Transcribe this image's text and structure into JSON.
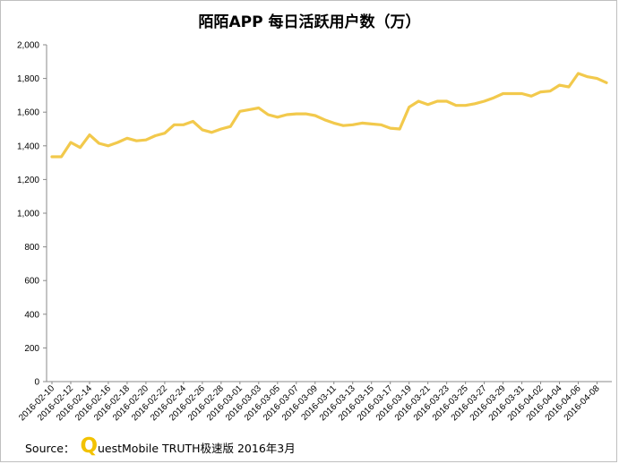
{
  "chart_data": {
    "type": "line",
    "title": "陌陌APP 每日活跃用户数（万）",
    "ylim": [
      0,
      2000
    ],
    "yticks": [
      "0",
      "200",
      "400",
      "600",
      "800",
      "1,000",
      "1,200",
      "1,400",
      "1,600",
      "1,800",
      "2,000"
    ],
    "ytick_values": [
      0,
      200,
      400,
      600,
      800,
      1000,
      1200,
      1400,
      1600,
      1800,
      2000
    ],
    "xtick_labels": [
      "2016-02-10",
      "2016-02-12",
      "2016-02-14",
      "2016-02-16",
      "2016-02-18",
      "2016-02-20",
      "2016-02-22",
      "2016-02-24",
      "2016-02-26",
      "2016-02-28",
      "2016-03-01",
      "2016-03-03",
      "2016-03-05",
      "2016-03-07",
      "2016-03-09",
      "2016-03-11",
      "2016-03-13",
      "2016-03-15",
      "2016-03-17",
      "2016-03-19",
      "2016-03-21",
      "2016-03-23",
      "2016-03-25",
      "2016-03-27",
      "2016-03-29",
      "2016-03-31",
      "2016-04-02",
      "2016-04-04",
      "2016-04-06",
      "2016-04-08"
    ],
    "grid": false,
    "series": [
      {
        "color": "#f2c94c",
        "x": [
          "2016-02-10",
          "2016-02-11",
          "2016-02-12",
          "2016-02-13",
          "2016-02-14",
          "2016-02-15",
          "2016-02-16",
          "2016-02-17",
          "2016-02-18",
          "2016-02-19",
          "2016-02-20",
          "2016-02-21",
          "2016-02-22",
          "2016-02-23",
          "2016-02-24",
          "2016-02-25",
          "2016-02-26",
          "2016-02-27",
          "2016-02-28",
          "2016-02-29",
          "2016-03-01",
          "2016-03-02",
          "2016-03-03",
          "2016-03-04",
          "2016-03-05",
          "2016-03-06",
          "2016-03-07",
          "2016-03-08",
          "2016-03-09",
          "2016-03-10",
          "2016-03-11",
          "2016-03-12",
          "2016-03-13",
          "2016-03-14",
          "2016-03-15",
          "2016-03-16",
          "2016-03-17",
          "2016-03-18",
          "2016-03-19",
          "2016-03-20",
          "2016-03-21",
          "2016-03-22",
          "2016-03-23",
          "2016-03-24",
          "2016-03-25",
          "2016-03-26",
          "2016-03-27",
          "2016-03-28",
          "2016-03-29",
          "2016-03-30",
          "2016-03-31",
          "2016-04-01",
          "2016-04-02",
          "2016-04-03",
          "2016-04-04",
          "2016-04-05",
          "2016-04-06",
          "2016-04-07",
          "2016-04-08",
          "2016-04-09"
        ],
        "values": [
          1335,
          1335,
          1420,
          1390,
          1465,
          1415,
          1400,
          1420,
          1445,
          1430,
          1435,
          1460,
          1475,
          1525,
          1525,
          1545,
          1495,
          1480,
          1500,
          1515,
          1605,
          1615,
          1625,
          1585,
          1570,
          1585,
          1590,
          1590,
          1580,
          1555,
          1535,
          1520,
          1525,
          1535,
          1530,
          1525,
          1505,
          1500,
          1630,
          1665,
          1645,
          1665,
          1665,
          1640,
          1640,
          1650,
          1665,
          1685,
          1710,
          1710,
          1710,
          1695,
          1720,
          1725,
          1760,
          1750,
          1830,
          1810,
          1800,
          1775
        ]
      }
    ]
  },
  "source": {
    "prefix": "Source：",
    "logo_letter": "Q",
    "text": "uestMobile TRUTH极速版 2016年3月"
  }
}
